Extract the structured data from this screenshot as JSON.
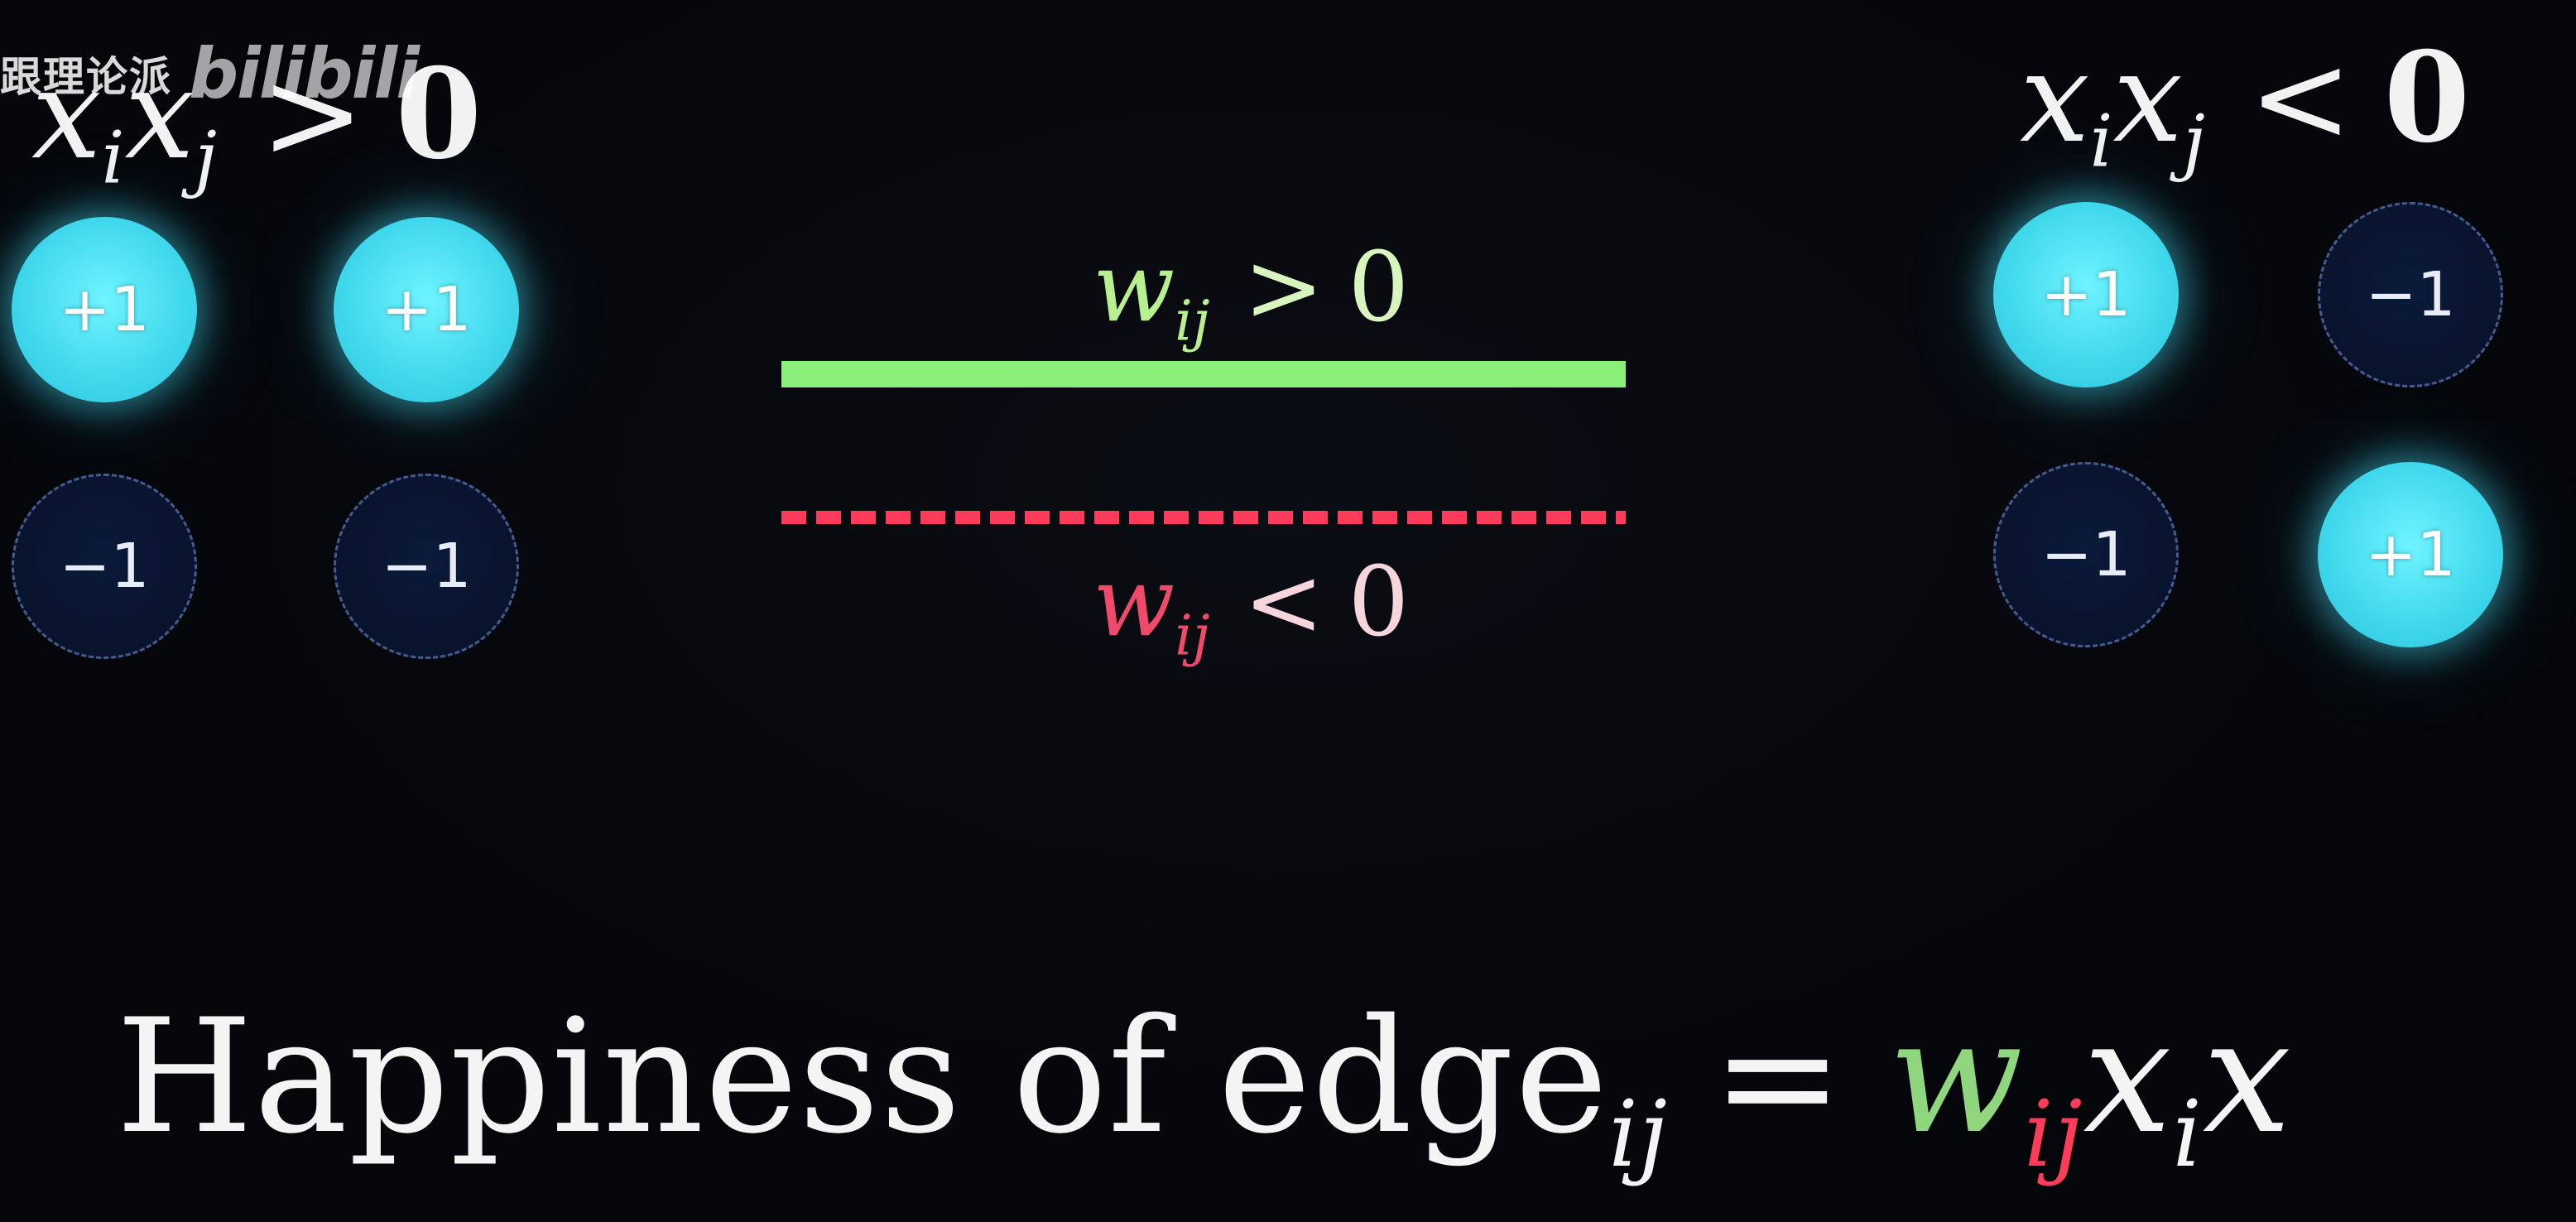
{
  "watermark": {
    "text": "跟理论派",
    "logo": "bilibili"
  },
  "left_group": {
    "label": {
      "a": "x",
      "a_sub": "i",
      "b": "x",
      "b_sub": "j",
      "op": ">",
      "value": "0"
    },
    "nodes": [
      "+1",
      "+1",
      "−1",
      "−1"
    ]
  },
  "right_group": {
    "label": {
      "a": "x",
      "a_sub": "i",
      "b": "x",
      "b_sub": "j",
      "op": "<",
      "value": "0"
    },
    "nodes": [
      "+1",
      "−1",
      "−1",
      "+1"
    ]
  },
  "edges": {
    "positive": {
      "w": "w",
      "sub": "ij",
      "op": ">",
      "value": "0",
      "color": "#8bf07a"
    },
    "negative": {
      "w": "w",
      "sub": "ij",
      "op": "<",
      "value": "0",
      "color": "#ff3b5c"
    }
  },
  "formula": {
    "text": "Happiness of edge",
    "text_sub": "ij",
    "eq": "=",
    "w": "w",
    "w_sub": "ij",
    "x1": "x",
    "x1_sub": "i",
    "x2": "x"
  },
  "colors": {
    "node_positive": "#3fd7ec",
    "node_negative": "#08122b",
    "background": "#05060a"
  }
}
